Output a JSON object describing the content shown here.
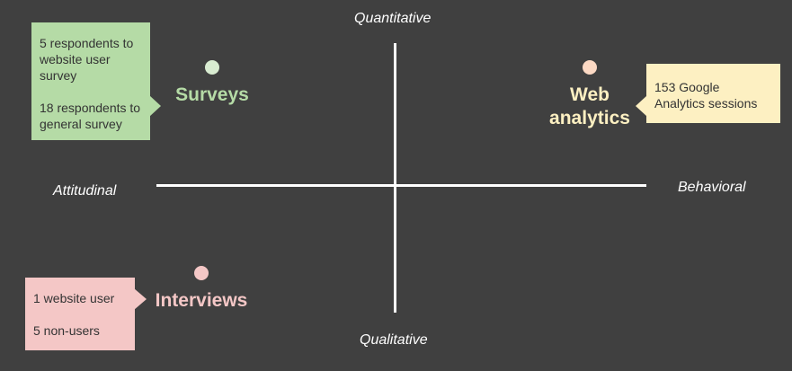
{
  "axes": {
    "top": "Quantitative",
    "bottom": "Qualitative",
    "left": "Attitudinal",
    "right": "Behavioral"
  },
  "methods": {
    "surveys": {
      "label": "Surveys",
      "color": "#b5dba6",
      "notes": [
        "5 respondents to website user survey",
        "18 respondents to general survey"
      ]
    },
    "web_analytics": {
      "label": "Web\nanalytics",
      "color": "#fdf0c2",
      "notes": [
        "153 Google Analytics sessions"
      ]
    },
    "interviews": {
      "label": "Interviews",
      "color": "#f4c7c6",
      "notes": [
        "1 website user",
        "5 non-users"
      ]
    }
  },
  "colors": {
    "background": "#404040",
    "axis": "#ffffff",
    "surveys_dot": "#d9ecd1",
    "web_analytics_dot": "#fcd9c4",
    "interviews_dot": "#f4c7c6"
  }
}
